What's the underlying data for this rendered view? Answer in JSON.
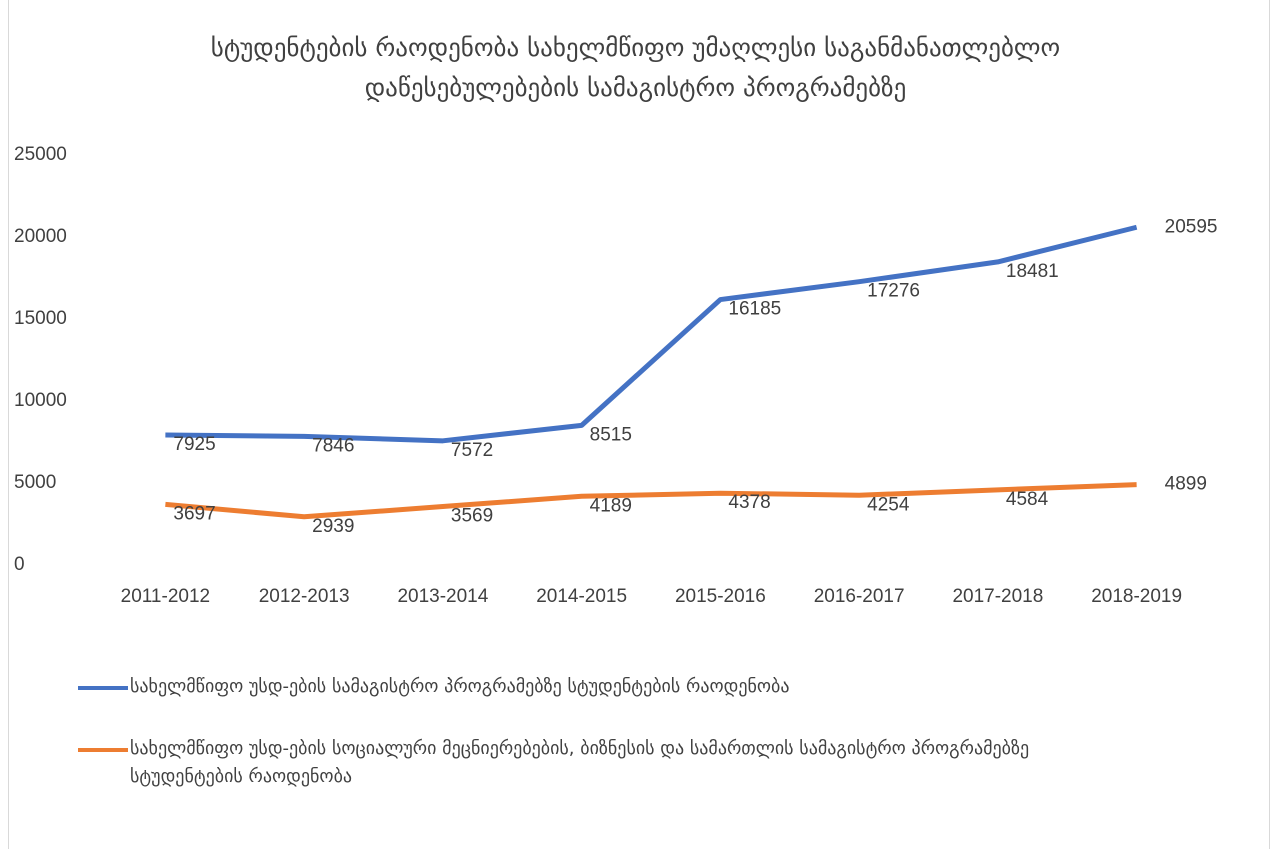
{
  "chart_data": {
    "type": "line",
    "title": "სტუდენტების რაოდენობა სახელმწიფო უმაღლესი საგანმანათლებლო\nდაწესებულებების სამაგისტრო პროგრამებზე",
    "categories": [
      "2011-2012",
      "2012-2013",
      "2013-2014",
      "2014-2015",
      "2015-2016",
      "2016-2017",
      "2017-2018",
      "2018-2019"
    ],
    "series": [
      {
        "name": "სახელმწიფო უსდ-ების სამაგისტრო პროგრამებზე სტუდენტების რაოდენობა",
        "color": "#4472c4",
        "values": [
          7925,
          7846,
          7572,
          8515,
          16185,
          17276,
          18481,
          20595
        ]
      },
      {
        "name": "სახელმწიფო უსდ-ების სოციალური მეცნიერებების, ბიზნესის და სამართლის სამაგისტრო პროგრამებზე სტუდენტების რაოდენობა",
        "color": "#ed7d31",
        "values": [
          3697,
          2939,
          3569,
          4189,
          4378,
          4254,
          4584,
          4899
        ]
      }
    ],
    "ylim": [
      0,
      25000
    ],
    "yticks": [
      0,
      5000,
      10000,
      15000,
      20000,
      25000
    ],
    "grid": false,
    "legend": "bottom"
  }
}
